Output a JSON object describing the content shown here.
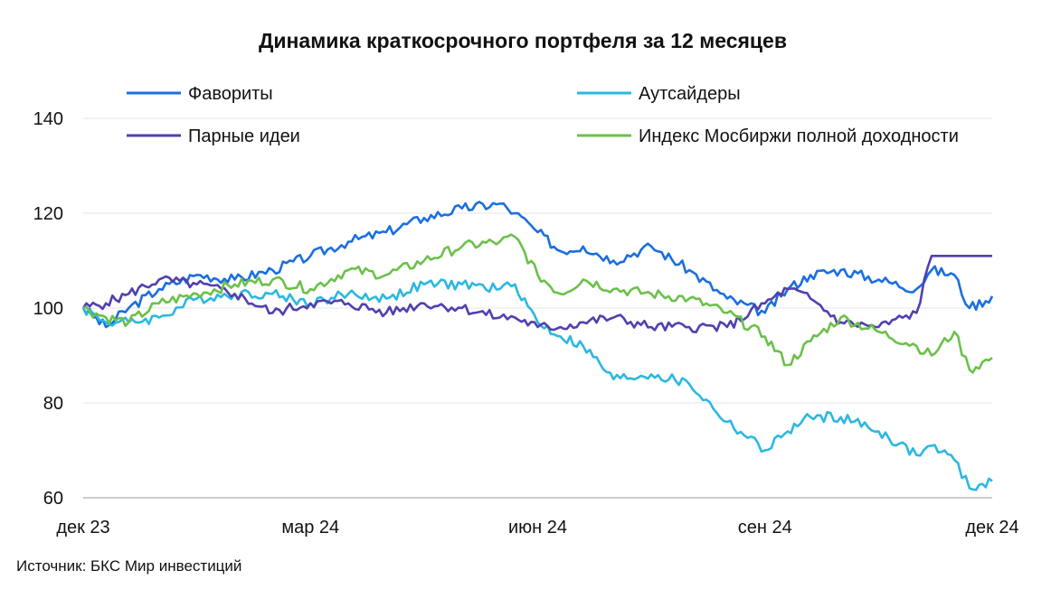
{
  "chart_data": {
    "type": "line",
    "title": "Динамика краткосрочного портфеля за 12 месяцев",
    "xlabel": "",
    "ylabel": "",
    "ylim": [
      60,
      140
    ],
    "yticks": [
      140,
      120,
      100,
      80,
      60
    ],
    "x_tick_labels": [
      "дек 23",
      "мар 24",
      "июн 24",
      "сен 24",
      "дек 24"
    ],
    "x_tick_positions": [
      0,
      3,
      6,
      9,
      12
    ],
    "x_range": [
      0,
      12
    ],
    "grid": true,
    "legend_position": "top",
    "source": "Источник: БКС Мир инвестиций",
    "x": [
      0,
      0.3,
      0.6,
      1,
      1.5,
      2,
      2.5,
      3,
      3.5,
      4,
      4.5,
      5,
      5.5,
      5.7,
      6,
      6.3,
      6.6,
      7,
      7.5,
      8,
      8.5,
      9,
      9.3,
      9.6,
      10,
      10.5,
      11,
      11.2,
      11.5,
      11.7,
      12
    ],
    "series": [
      {
        "name": "Фавориты",
        "color": "#1a6fdf",
        "values": [
          100,
          96,
          100,
          104,
          107,
          106,
          108,
          111,
          114,
          116,
          119,
          121,
          122,
          120,
          116,
          112,
          113,
          110,
          113,
          108,
          102,
          99,
          104,
          107,
          108,
          106,
          104,
          108,
          107,
          100,
          102.5
        ]
      },
      {
        "name": "Аутсайдеры",
        "color": "#2bb8e0",
        "values": [
          100,
          97,
          97,
          98,
          102,
          103,
          103,
          101,
          103,
          102,
          105,
          105,
          104,
          105,
          97,
          94,
          92,
          85,
          86,
          84,
          76,
          70,
          74,
          77,
          77,
          74,
          69,
          71,
          68,
          62,
          63.5
        ]
      },
      {
        "name": "Парные идеи",
        "color": "#5040b0",
        "values": [
          100,
          101,
          103,
          106,
          105,
          103,
          99,
          101,
          101,
          99,
          101,
          100,
          98,
          98,
          96,
          96,
          97,
          98,
          96,
          96,
          96,
          101,
          104,
          102,
          97,
          96,
          99,
          111,
          111,
          111,
          111
        ]
      },
      {
        "name": "Индекс Мосбиржи полной доходности",
        "color": "#6cc04a",
        "values": [
          100,
          98,
          97,
          101,
          103,
          105,
          106,
          104,
          108,
          107,
          110,
          113,
          114,
          115,
          107,
          103,
          106,
          104,
          103,
          102,
          99,
          94,
          88,
          93,
          98,
          95,
          92,
          90,
          95,
          87,
          89.5
        ]
      }
    ]
  }
}
